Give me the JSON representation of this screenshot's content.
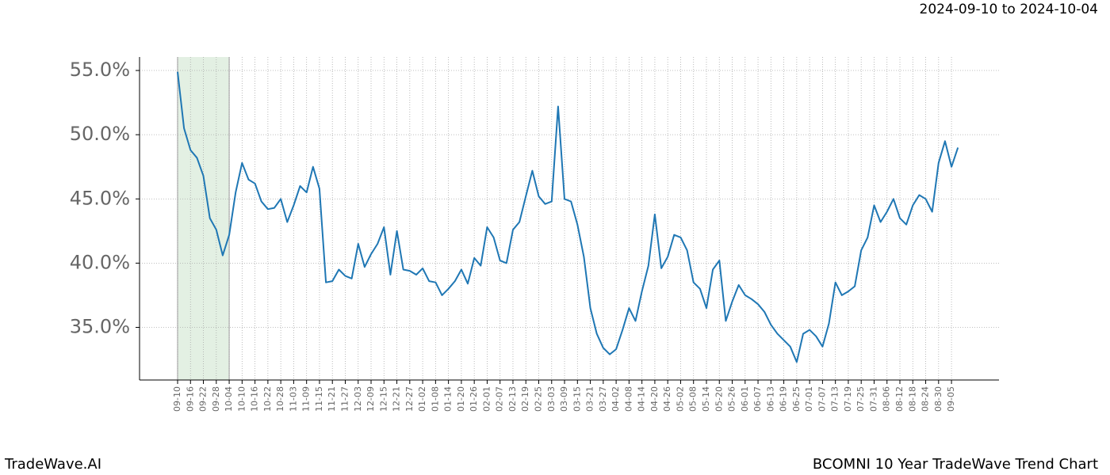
{
  "chart_data": {
    "type": "line",
    "subtitle": "2024-09-10 to 2024-10-04",
    "footer_left": "TradeWave.AI",
    "footer_right": "BCOMNI 10 Year TradeWave Trend Chart",
    "categories": [
      "09-10",
      null,
      "09-16",
      null,
      "09-22",
      null,
      "09-28",
      null,
      "10-04",
      null,
      "10-10",
      null,
      "10-16",
      null,
      "10-22",
      null,
      "10-28",
      null,
      "11-03",
      null,
      "11-09",
      null,
      "11-15",
      null,
      "11-21",
      null,
      "11-27",
      null,
      "12-03",
      null,
      "12-09",
      null,
      "12-15",
      null,
      "12-21",
      null,
      "12-27",
      null,
      "01-02",
      null,
      "01-08",
      null,
      "01-14",
      null,
      "01-20",
      null,
      "01-26",
      null,
      "02-01",
      null,
      "02-07",
      null,
      "02-13",
      null,
      "02-19",
      null,
      "02-25",
      null,
      "03-03",
      null,
      "03-09",
      null,
      "03-15",
      null,
      "03-21",
      null,
      "03-27",
      null,
      "04-02",
      null,
      "04-08",
      null,
      "04-14",
      null,
      "04-20",
      null,
      "04-26",
      null,
      "05-02",
      null,
      "05-08",
      null,
      "05-14",
      null,
      "05-20",
      null,
      "05-26",
      null,
      "06-01",
      null,
      "06-07",
      null,
      "06-13",
      null,
      "06-19",
      null,
      "06-25",
      null,
      "07-01",
      null,
      "07-07",
      null,
      "07-13",
      null,
      "07-19",
      null,
      "07-25",
      null,
      "07-31",
      null,
      "08-06",
      null,
      "08-12",
      null,
      "08-18",
      null,
      "08-24",
      null,
      "08-30",
      null,
      "09-05",
      null
    ],
    "values": [
      54.9,
      50.5,
      48.8,
      48.2,
      46.8,
      43.5,
      42.6,
      40.6,
      42.2,
      45.5,
      47.8,
      46.5,
      46.2,
      44.8,
      44.2,
      44.3,
      45.0,
      43.2,
      44.5,
      46.0,
      45.5,
      47.5,
      45.8,
      38.5,
      38.6,
      39.5,
      39.0,
      38.8,
      41.5,
      39.7,
      40.7,
      41.5,
      42.8,
      39.1,
      42.5,
      39.5,
      39.4,
      39.1,
      39.6,
      38.6,
      38.5,
      37.5,
      38.0,
      38.6,
      39.5,
      38.4,
      40.4,
      39.8,
      42.8,
      42.0,
      40.2,
      40.0,
      42.6,
      43.2,
      45.2,
      47.2,
      45.2,
      44.6,
      44.8,
      52.2,
      45.0,
      44.8,
      43.0,
      40.5,
      36.5,
      34.5,
      33.4,
      32.9,
      33.3,
      34.8,
      36.5,
      35.5,
      37.8,
      39.8,
      43.8,
      39.6,
      40.5,
      42.2,
      42.0,
      41.0,
      38.5,
      38.0,
      36.5,
      39.5,
      40.2,
      35.5,
      37.0,
      38.3,
      37.5,
      37.2,
      36.8,
      36.2,
      35.2,
      34.5,
      34.0,
      33.5,
      32.3,
      34.5,
      34.8,
      34.3,
      33.5,
      35.3,
      38.5,
      37.5,
      37.8,
      38.2,
      41.0,
      42.0,
      44.5,
      43.2,
      44.0,
      45.0,
      43.5,
      43.0,
      44.5,
      45.3,
      45.0,
      44.0,
      47.8,
      49.5,
      47.5,
      49.0
    ],
    "color": "#1f77b4",
    "highlight": [
      "09-10",
      "10-04"
    ],
    "highlight_color": "#e3f0e3",
    "ylim": [
      30.9,
      56.05
    ],
    "yticks": [
      {
        "value": 35,
        "label": "35.0%"
      },
      {
        "value": 40,
        "label": "40.0%"
      },
      {
        "value": 45,
        "label": "45.0%"
      },
      {
        "value": 50,
        "label": "50.0%"
      },
      {
        "value": 55,
        "label": "55.0%"
      }
    ],
    "grid": true
  }
}
